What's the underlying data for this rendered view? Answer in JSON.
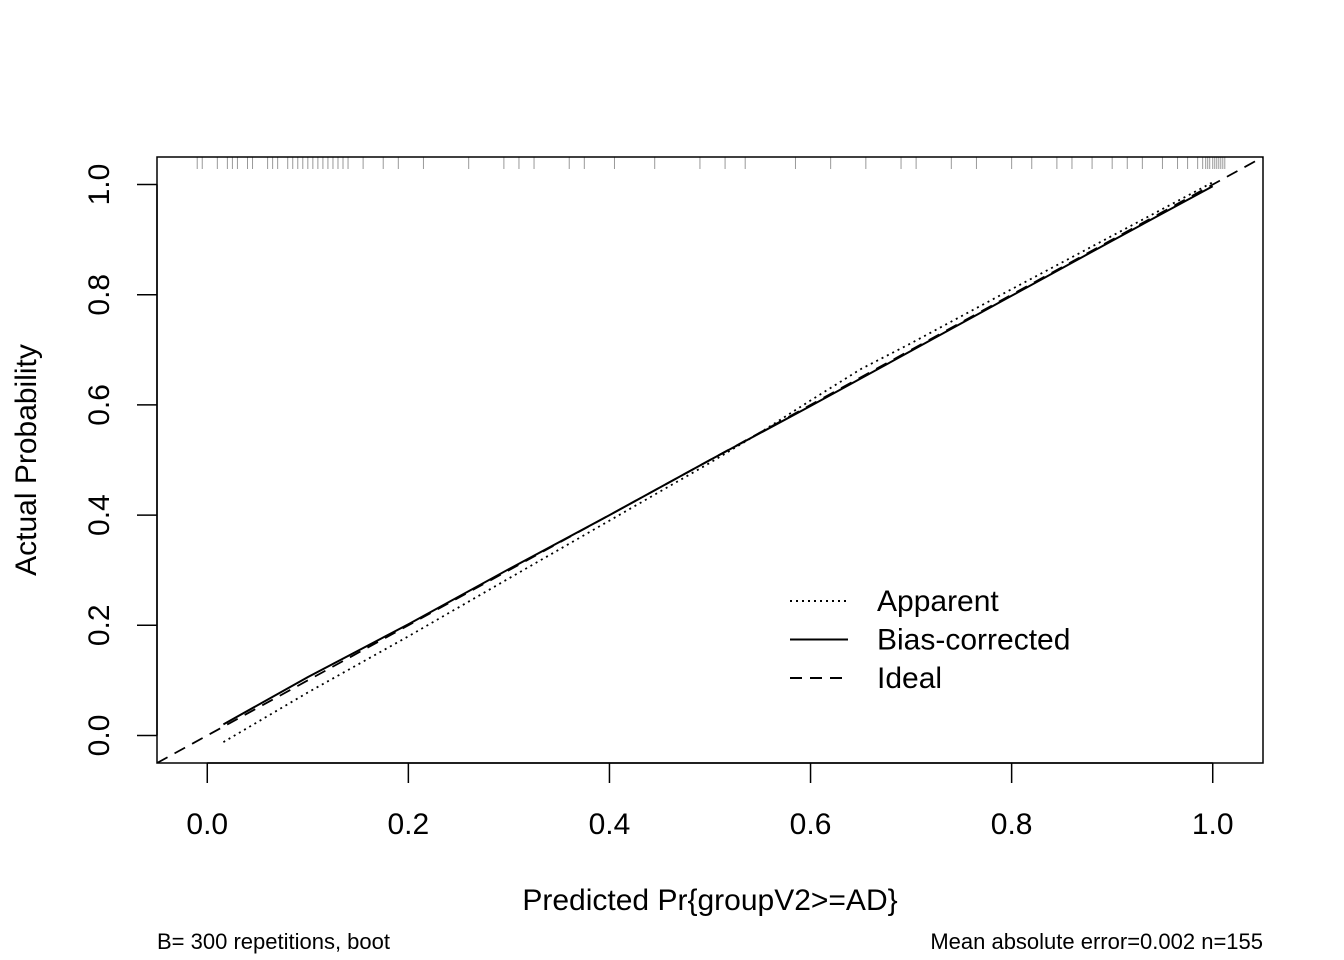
{
  "chart_data": {
    "type": "line",
    "title": "",
    "xlabel": "Predicted Pr{groupV2>=AD}",
    "ylabel": "Actual Probability",
    "xlim": [
      -0.05,
      1.05
    ],
    "ylim": [
      -0.05,
      1.05
    ],
    "x_ticks": [
      "0.0",
      "0.2",
      "0.4",
      "0.6",
      "0.8",
      "1.0"
    ],
    "y_ticks": [
      "0.0",
      "0.2",
      "0.4",
      "0.6",
      "0.8",
      "1.0"
    ],
    "x_tick_values": [
      0,
      0.2,
      0.4,
      0.6,
      0.8,
      1.0
    ],
    "y_tick_values": [
      0,
      0.2,
      0.4,
      0.6,
      0.8,
      1.0
    ],
    "grid": false,
    "legend_position": "bottom-right",
    "series": [
      {
        "name": "Apparent",
        "style": "dotted",
        "x": [
          0.016,
          0.1,
          0.2,
          0.3,
          0.4,
          0.5,
          0.55,
          0.6,
          0.65,
          0.7,
          0.8,
          0.9,
          1.0
        ],
        "y": [
          -0.012,
          0.078,
          0.18,
          0.285,
          0.39,
          0.495,
          0.55,
          0.608,
          0.665,
          0.712,
          0.81,
          0.907,
          1.004
        ]
      },
      {
        "name": "Bias-corrected",
        "style": "solid",
        "x": [
          0.016,
          0.1,
          0.2,
          0.3,
          0.4,
          0.5,
          0.6,
          0.7,
          0.8,
          0.9,
          1.0
        ],
        "y": [
          0.02,
          0.106,
          0.202,
          0.302,
          0.4,
          0.5,
          0.598,
          0.698,
          0.798,
          0.898,
          0.997
        ]
      },
      {
        "name": "Ideal",
        "style": "dashed",
        "x": [
          -0.05,
          1.05
        ],
        "y": [
          -0.05,
          1.05
        ]
      }
    ],
    "rug_x": [
      -0.01,
      -0.005,
      0.01,
      0.02,
      0.025,
      0.03,
      0.04,
      0.045,
      0.06,
      0.065,
      0.07,
      0.08,
      0.085,
      0.09,
      0.095,
      0.1,
      0.105,
      0.11,
      0.115,
      0.12,
      0.125,
      0.13,
      0.135,
      0.14,
      0.155,
      0.175,
      0.19,
      0.215,
      0.26,
      0.295,
      0.31,
      0.325,
      0.36,
      0.375,
      0.405,
      0.445,
      0.49,
      0.515,
      0.535,
      0.585,
      0.62,
      0.655,
      0.69,
      0.705,
      0.74,
      0.765,
      0.8,
      0.82,
      0.845,
      0.86,
      0.88,
      0.9,
      0.915,
      0.93,
      0.95,
      0.965,
      0.975,
      0.985,
      0.99,
      0.993,
      0.995,
      0.997,
      1.0,
      1.002,
      1.004,
      1.006,
      1.008,
      1.01,
      1.012
    ],
    "footnote_left": "B= 300 repetitions, boot",
    "footnote_right": "Mean absolute error=0.002 n=155"
  }
}
